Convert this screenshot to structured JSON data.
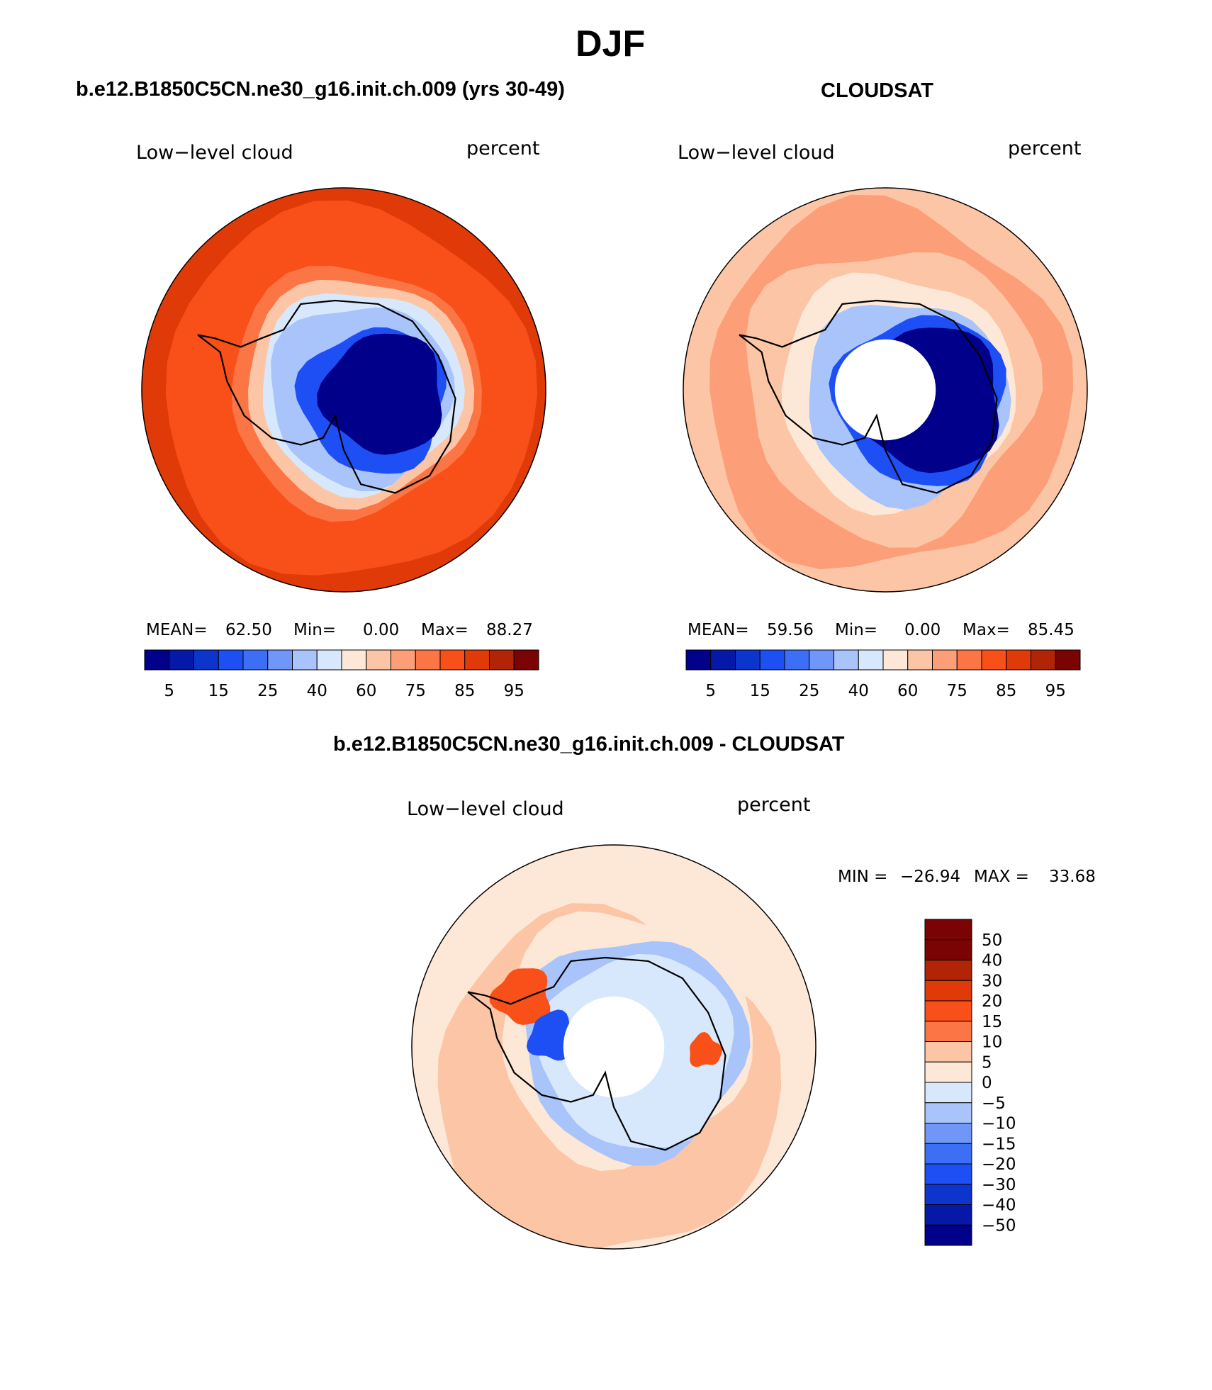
{
  "title": "DJF",
  "colors": {
    "full": [
      "#00008b",
      "#0618a8",
      "#0c35cd",
      "#1e4ff4",
      "#3c6ff6",
      "#7096f8",
      "#a8c4fb",
      "#d8e8fc",
      "#fde8d8",
      "#fcc6a6",
      "#fc9f78",
      "#fb7545",
      "#f9501a",
      "#e03a08",
      "#b22406",
      "#7a0403"
    ],
    "diff": [
      "#00008b",
      "#0618a8",
      "#0c35cd",
      "#1e4ff4",
      "#7096f8",
      "#a8c4fb",
      "#d8e8fc",
      "#fde8d8",
      "#fcc6a6",
      "#fb7545",
      "#f9501a",
      "#e03a08",
      "#b22406",
      "#7a0403"
    ],
    "land_fill": "#ffffff",
    "coastline": "#000000"
  },
  "panels": [
    {
      "title": "b.e12.B1850C5CN.ne30_g16.init.ch.009 (yrs 30-49)",
      "left_label": "Low−level cloud",
      "right_label": "percent",
      "stats": {
        "mean_label": "MEAN=",
        "mean": "62.50",
        "min_label": "Min=",
        "min": "0.00",
        "max_label": "Max=",
        "max": "88.27"
      },
      "colorbar_ticks": [
        "5",
        "15",
        "25",
        "40",
        "60",
        "75",
        "85",
        "95"
      ],
      "pole_hole": false
    },
    {
      "title": "CLOUDSAT",
      "left_label": "Low−level cloud",
      "right_label": "percent",
      "stats": {
        "mean_label": "MEAN=",
        "mean": "59.56",
        "min_label": "Min=",
        "min": "0.00",
        "max_label": "Max=",
        "max": "85.45"
      },
      "colorbar_ticks": [
        "5",
        "15",
        "25",
        "40",
        "60",
        "75",
        "85",
        "95"
      ],
      "pole_hole": true
    },
    {
      "title": "b.e12.B1850C5CN.ne30_g16.init.ch.009 - CLOUDSAT",
      "left_label": "Low−level cloud",
      "right_label": "percent",
      "stats": {
        "min_label": "MIN =",
        "min": "−26.94",
        "max_label": "MAX =",
        "max": "33.68"
      },
      "colorbar_ticks": [
        "50",
        "40",
        "30",
        "20",
        "15",
        "10",
        "5",
        "0",
        "−5",
        "−10",
        "−15",
        "−20",
        "−30",
        "−40",
        "−50"
      ],
      "pole_hole": true
    }
  ]
}
